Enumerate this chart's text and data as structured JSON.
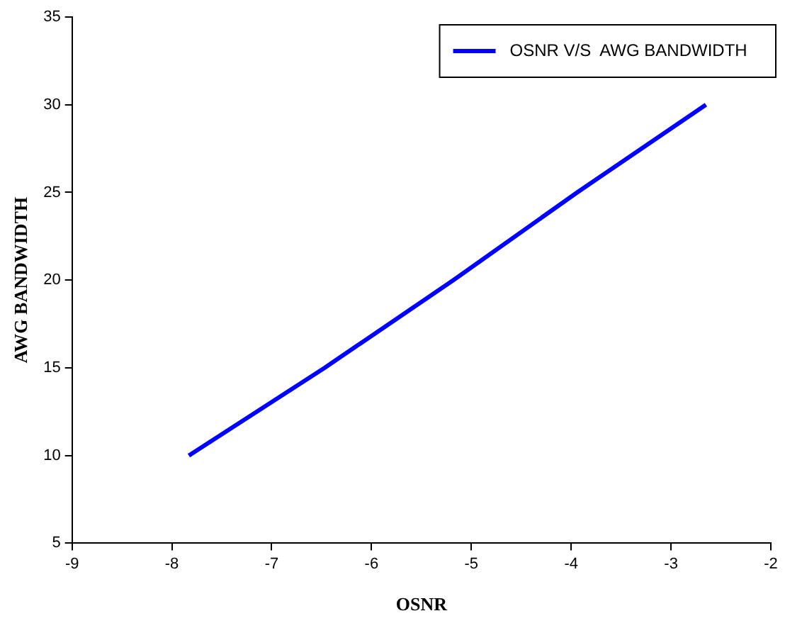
{
  "chart_data": {
    "type": "line",
    "xlabel": "OSNR",
    "ylabel": "AWG BANDWIDTH",
    "x": [
      -7.83,
      -6.47,
      -5.18,
      -3.94,
      -2.65
    ],
    "series": [
      {
        "name": "OSNR V/S  AWG BANDWIDTH",
        "color": "#0000ff",
        "values": [
          10,
          15,
          20,
          25,
          30
        ]
      }
    ],
    "xlim": [
      -9,
      -2
    ],
    "xticks": [
      -9,
      -8,
      -7,
      -6,
      -5,
      -4,
      -3,
      -2
    ],
    "ylim": [
      5,
      35
    ],
    "yticks": [
      5,
      10,
      15,
      20,
      25,
      30,
      35
    ],
    "grid": false,
    "legend": "top right",
    "marker": "none",
    "line_style": "solid"
  }
}
